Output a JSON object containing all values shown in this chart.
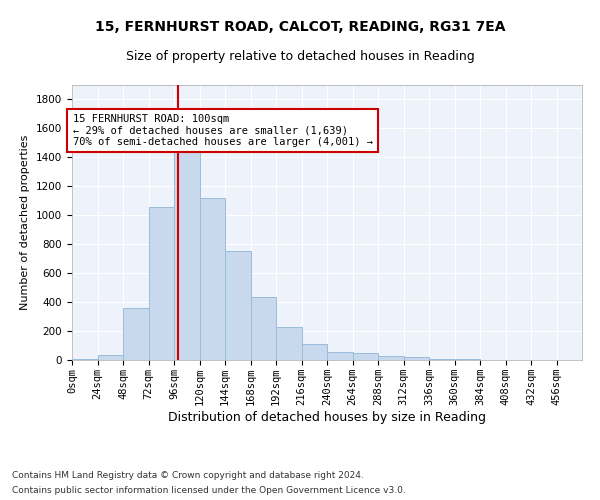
{
  "title1": "15, FERNHURST ROAD, CALCOT, READING, RG31 7EA",
  "title2": "Size of property relative to detached houses in Reading",
  "xlabel": "Distribution of detached houses by size in Reading",
  "ylabel": "Number of detached properties",
  "bar_color": "#c8d9ee",
  "bar_edge_color": "#9bbcda",
  "background_color": "#eef2fa",
  "grid_color": "#ffffff",
  "bin_edges": [
    0,
    24,
    48,
    72,
    96,
    120,
    144,
    168,
    192,
    216,
    240,
    264,
    288,
    312,
    336,
    360,
    384,
    408,
    432,
    456,
    480
  ],
  "bar_heights": [
    10,
    35,
    360,
    1060,
    1470,
    1120,
    750,
    435,
    225,
    110,
    55,
    45,
    30,
    20,
    10,
    5,
    3,
    2,
    1,
    1
  ],
  "vline_x": 100,
  "vline_color": "#cc0000",
  "annotation_line1": "15 FERNHURST ROAD: 100sqm",
  "annotation_line2": "← 29% of detached houses are smaller (1,639)",
  "annotation_line3": "70% of semi-detached houses are larger (4,001) →",
  "annotation_box_color": "#cc0000",
  "ylim": [
    0,
    1900
  ],
  "yticks": [
    0,
    200,
    400,
    600,
    800,
    1000,
    1200,
    1400,
    1600,
    1800
  ],
  "footer1": "Contains HM Land Registry data © Crown copyright and database right 2024.",
  "footer2": "Contains public sector information licensed under the Open Government Licence v3.0.",
  "title1_fontsize": 10,
  "title2_fontsize": 9,
  "xlabel_fontsize": 9,
  "ylabel_fontsize": 8,
  "tick_fontsize": 7.5,
  "annotation_fontsize": 7.5,
  "footer_fontsize": 6.5
}
